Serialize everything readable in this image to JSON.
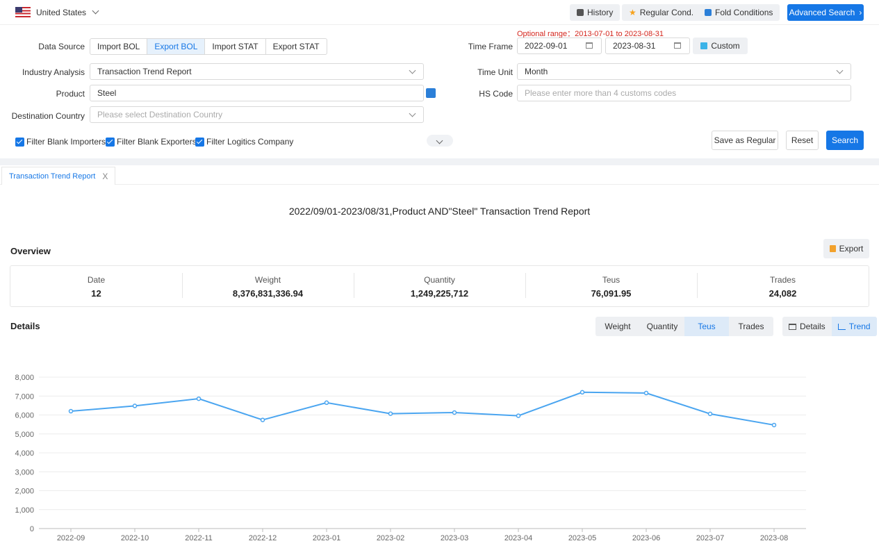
{
  "topbar": {
    "country": "United States",
    "history": "History",
    "regular_cond": "Regular Cond.",
    "fold_conditions": "Fold Conditions",
    "advanced_search": "Advanced Search"
  },
  "form": {
    "data_source_label": "Data Source",
    "data_sources": [
      "Import BOL",
      "Export BOL",
      "Import STAT",
      "Export STAT"
    ],
    "data_source_selected": "Export BOL",
    "optional_range": "Optional range：2013-07-01 to 2023-08-31",
    "time_frame_label": "Time Frame",
    "date_from": "2022-09-01",
    "date_to": "2023-08-31",
    "custom": "Custom",
    "industry_label": "Industry Analysis",
    "industry_value": "Transaction Trend Report",
    "time_unit_label": "Time Unit",
    "time_unit_value": "Month",
    "product_label": "Product",
    "product_value": "Steel",
    "hs_label": "HS Code",
    "hs_placeholder": "Please enter more than 4 customs codes",
    "dest_label": "Destination Country",
    "dest_placeholder": "Please select Destination Country",
    "filters": [
      "Filter Blank Importers",
      "Filter Blank Exporters",
      "Filter Logitics Company"
    ],
    "save_regular": "Save as Regular",
    "reset": "Reset",
    "search": "Search"
  },
  "tab": {
    "label": "Transaction Trend Report",
    "close": "X"
  },
  "report": {
    "title": "2022/09/01-2023/08/31,Product AND\"Steel\" Transaction Trend Report",
    "overview_heading": "Overview",
    "export": "Export",
    "overview": [
      {
        "key": "Date",
        "value": "12"
      },
      {
        "key": "Weight",
        "value": "8,376,831,336.94"
      },
      {
        "key": "Quantity",
        "value": "1,249,225,712"
      },
      {
        "key": "Teus",
        "value": "76,091.95"
      },
      {
        "key": "Trades",
        "value": "24,082"
      }
    ],
    "details_heading": "Details",
    "metrics": [
      "Weight",
      "Quantity",
      "Teus",
      "Trades"
    ],
    "metric_selected": "Teus",
    "views": [
      "Details",
      "Trend"
    ],
    "view_selected": "Trend"
  },
  "chart_data": {
    "type": "line",
    "categories": [
      "2022-09",
      "2022-10",
      "2022-11",
      "2022-12",
      "2023-01",
      "2023-02",
      "2023-03",
      "2023-04",
      "2023-05",
      "2023-06",
      "2023-07",
      "2023-08"
    ],
    "series": [
      {
        "values": [
          6200,
          6480,
          6860,
          5740,
          6650,
          6070,
          6130,
          5960,
          7200,
          7160,
          6060,
          5470
        ]
      }
    ],
    "ylim": [
      0,
      8000
    ],
    "yticks": [
      "0",
      "1,000",
      "2,000",
      "3,000",
      "4,000",
      "5,000",
      "6,000",
      "7,000",
      "8,000"
    ],
    "grid": true,
    "color": "#4aa5f0"
  }
}
